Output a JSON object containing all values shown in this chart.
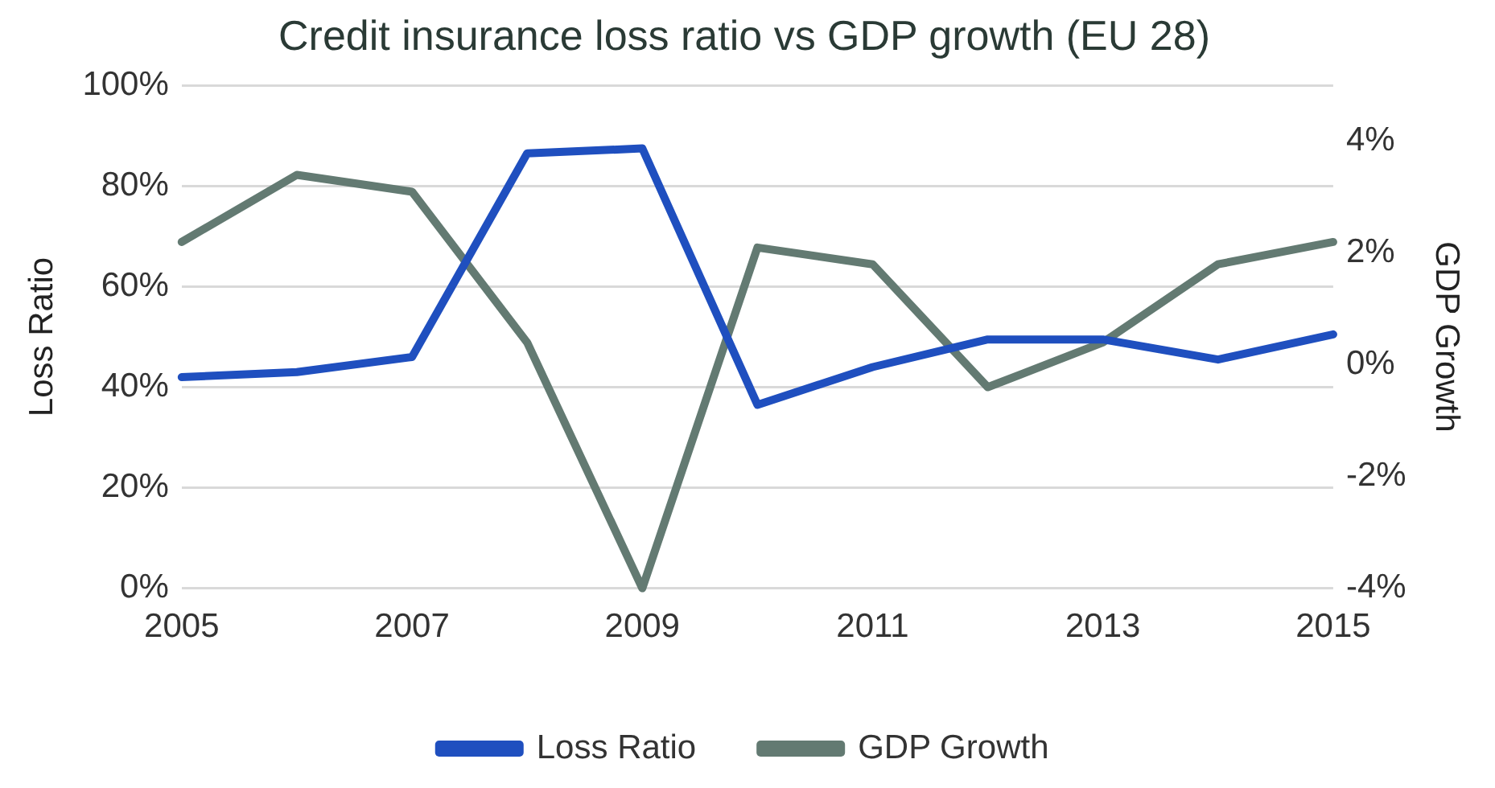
{
  "chart_data": {
    "type": "line",
    "title": "Credit insurance loss ratio vs GDP growth (EU 28)",
    "ylabel": "Loss Ratio",
    "y2label": "GDP Growth",
    "x": [
      2005,
      2006,
      2007,
      2008,
      2009,
      2010,
      2011,
      2012,
      2013,
      2014,
      2015
    ],
    "xlim": [
      2005,
      2015
    ],
    "xticks": [
      2005,
      2007,
      2009,
      2011,
      2013,
      2015
    ],
    "ylim": [
      0,
      100
    ],
    "yticks": [
      {
        "value": 0,
        "label": "0%"
      },
      {
        "value": 20,
        "label": "20%"
      },
      {
        "value": 40,
        "label": "40%"
      },
      {
        "value": 60,
        "label": "60%"
      },
      {
        "value": 80,
        "label": "80%"
      },
      {
        "value": 100,
        "label": "100%"
      }
    ],
    "y2lim": [
      -4,
      5
    ],
    "y2ticks": [
      {
        "value": -4,
        "label": "-4%"
      },
      {
        "value": -2,
        "label": "-2%"
      },
      {
        "value": 0,
        "label": "0%"
      },
      {
        "value": 2,
        "label": "2%"
      },
      {
        "value": 4,
        "label": "4%"
      }
    ],
    "series": [
      {
        "name": "Loss Ratio",
        "color": "#1f4fbf",
        "values": [
          42,
          43,
          46,
          86.5,
          87.5,
          36.5,
          44,
          49.5,
          49.5,
          45.5,
          50.5
        ]
      },
      {
        "name": "GDP Growth",
        "color": "#637a72",
        "axis": "y2",
        "values": [
          2.2,
          3.4,
          3.1,
          0.4,
          -4,
          2.1,
          1.8,
          -0.4,
          0.4,
          1.8,
          2.2
        ]
      }
    ],
    "grid": "y",
    "legend": "bottom",
    "marker": "none",
    "line_style": "solid"
  }
}
